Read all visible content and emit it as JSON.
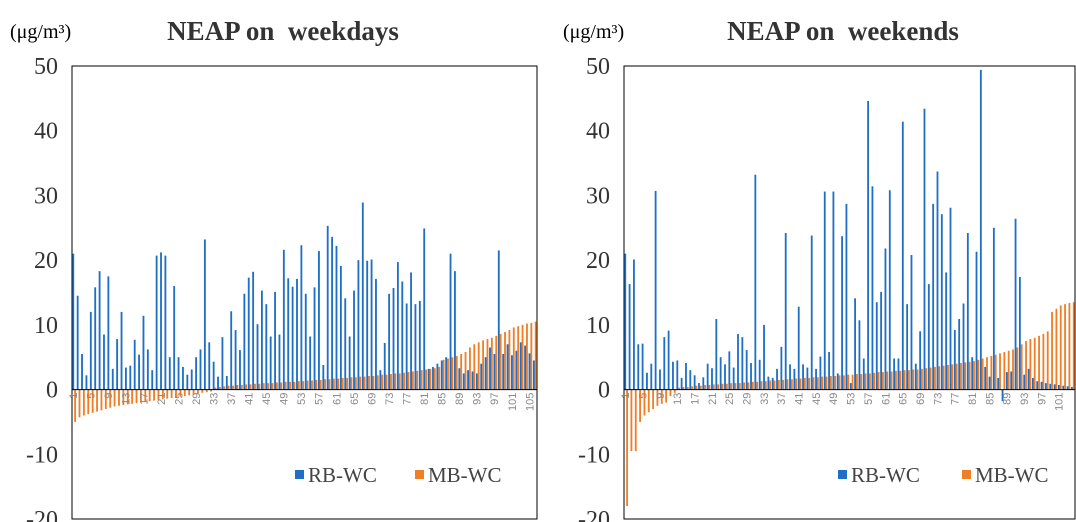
{
  "colors": {
    "rb": "#1f6fc6",
    "mb": "#f07e26",
    "axis": "#000000",
    "tick_x": "#8a8a8a"
  },
  "chart_data": [
    {
      "type": "bar",
      "title": "NEAP on  weekdays",
      "unit_label": "(μg/m³)",
      "ylim": [
        -20,
        50
      ],
      "yticks": [
        "50",
        "40",
        "30",
        "20",
        "10",
        "0",
        "-10",
        "-20"
      ],
      "grid": false,
      "legend_placement": "bottom-right",
      "categories": [
        1,
        2,
        3,
        4,
        5,
        6,
        7,
        8,
        9,
        10,
        11,
        12,
        13,
        14,
        15,
        16,
        17,
        18,
        19,
        20,
        21,
        22,
        23,
        24,
        25,
        26,
        27,
        28,
        29,
        30,
        31,
        32,
        33,
        34,
        35,
        36,
        37,
        38,
        39,
        40,
        41,
        42,
        43,
        44,
        45,
        46,
        47,
        48,
        49,
        50,
        51,
        52,
        53,
        54,
        55,
        56,
        57,
        58,
        59,
        60,
        61,
        62,
        63,
        64,
        65,
        66,
        67,
        68,
        69,
        70,
        71,
        72,
        73,
        74,
        75,
        76,
        77,
        78,
        79,
        80,
        81,
        82,
        83,
        84,
        85,
        86,
        87,
        88,
        89,
        90,
        91,
        92,
        93,
        94,
        95,
        96,
        97,
        98,
        99,
        100,
        101,
        102,
        103,
        104,
        105,
        106
      ],
      "xtick_labels": [
        "1",
        "5",
        "9",
        "13",
        "17",
        "21",
        "25",
        "29",
        "33",
        "37",
        "41",
        "45",
        "49",
        "53",
        "57",
        "61",
        "65",
        "69",
        "73",
        "77",
        "81",
        "85",
        "89",
        "93",
        "97",
        "101",
        "105"
      ],
      "series": [
        {
          "name": "RB-WC",
          "values": [
            21.0,
            14.5,
            5.5,
            2.2,
            12.0,
            15.8,
            18.3,
            8.5,
            17.5,
            3.2,
            7.8,
            12.0,
            3.4,
            3.7,
            7.7,
            5.4,
            11.4,
            6.2,
            3.0,
            20.7,
            21.2,
            20.7,
            5.0,
            16.0,
            5.0,
            3.5,
            2.3,
            3.1,
            5.0,
            6.2,
            23.2,
            7.3,
            4.3,
            2.0,
            8.1,
            2.1,
            12.1,
            9.2,
            6.1,
            14.8,
            17.3,
            18.2,
            10.1,
            15.3,
            13.2,
            8.2,
            15.1,
            8.5,
            21.6,
            17.2,
            15.9,
            17.1,
            22.3,
            14.8,
            8.2,
            15.8,
            21.4,
            3.8,
            25.3,
            23.6,
            22.2,
            19.1,
            14.1,
            8.2,
            15.3,
            20.0,
            28.9,
            19.9,
            20.1,
            17.1,
            3.0,
            7.2,
            14.8,
            15.7,
            19.7,
            16.7,
            13.3,
            18.1,
            13.2,
            13.7,
            24.9,
            3.2,
            3.5,
            4.0,
            4.5,
            5.0,
            21.0,
            18.3,
            3.3,
            2.5,
            3.0,
            2.8,
            2.5,
            4.0,
            5.0,
            6.5,
            5.5,
            21.5,
            5.5,
            7.0,
            5.3,
            6.0,
            7.3,
            6.8,
            5.6,
            4.5
          ]
        },
        {
          "name": "MB-WC",
          "values": [
            -5.0,
            -4.3,
            -4.0,
            -3.8,
            -3.6,
            -3.4,
            -3.2,
            -3.0,
            -2.8,
            -2.6,
            -2.5,
            -2.4,
            -2.3,
            -2.2,
            -2.1,
            -2.0,
            -1.9,
            -1.8,
            -1.7,
            -1.6,
            -1.5,
            -1.4,
            -1.3,
            -1.2,
            -1.1,
            -1.0,
            -0.9,
            -0.8,
            -0.6,
            -0.5,
            -0.4,
            -0.3,
            0.3,
            0.4,
            0.5,
            0.6,
            0.6,
            0.7,
            0.7,
            0.8,
            0.8,
            0.9,
            0.9,
            1.0,
            1.0,
            1.0,
            1.1,
            1.1,
            1.2,
            1.2,
            1.2,
            1.3,
            1.3,
            1.4,
            1.4,
            1.5,
            1.5,
            1.6,
            1.6,
            1.7,
            1.7,
            1.8,
            1.8,
            1.9,
            1.9,
            2.0,
            2.0,
            2.1,
            2.1,
            2.2,
            2.3,
            2.3,
            2.4,
            2.5,
            2.5,
            2.6,
            2.7,
            2.8,
            2.9,
            3.0,
            3.1,
            3.2,
            3.3,
            3.5,
            4.6,
            4.8,
            5.0,
            5.2,
            5.5,
            5.8,
            6.5,
            7.0,
            7.3,
            7.6,
            7.8,
            8.0,
            8.3,
            8.6,
            8.9,
            9.2,
            9.6,
            9.8,
            10.0,
            10.2,
            10.3,
            10.5
          ]
        }
      ]
    },
    {
      "type": "bar",
      "title": "NEAP on  weekends",
      "unit_label": "(μg/m³)",
      "ylim": [
        -20,
        50
      ],
      "yticks": [
        "50",
        "40",
        "30",
        "20",
        "10",
        "0",
        "-10",
        "-20"
      ],
      "grid": false,
      "legend_placement": "bottom-right",
      "categories": [
        1,
        2,
        3,
        4,
        5,
        6,
        7,
        8,
        9,
        10,
        11,
        12,
        13,
        14,
        15,
        16,
        17,
        18,
        19,
        20,
        21,
        22,
        23,
        24,
        25,
        26,
        27,
        28,
        29,
        30,
        31,
        32,
        33,
        34,
        35,
        36,
        37,
        38,
        39,
        40,
        41,
        42,
        43,
        44,
        45,
        46,
        47,
        48,
        49,
        50,
        51,
        52,
        53,
        54,
        55,
        56,
        57,
        58,
        59,
        60,
        61,
        62,
        63,
        64,
        65,
        66,
        67,
        68,
        69,
        70,
        71,
        72,
        73,
        74,
        75,
        76,
        77,
        78,
        79,
        80,
        81,
        82,
        83,
        84,
        85,
        86,
        87,
        88,
        89,
        90,
        91,
        92,
        93,
        94,
        95,
        96,
        97,
        98,
        99,
        100,
        101,
        102,
        103,
        104
      ],
      "xtick_labels": [
        "1",
        "5",
        "9",
        "13",
        "17",
        "21",
        "25",
        "29",
        "33",
        "37",
        "41",
        "45",
        "49",
        "53",
        "57",
        "61",
        "65",
        "69",
        "73",
        "77",
        "81",
        "85",
        "89",
        "93",
        "97",
        "101"
      ],
      "series": [
        {
          "name": "RB-WC",
          "values": [
            21.0,
            16.3,
            20.1,
            7.0,
            7.1,
            2.6,
            4.0,
            30.7,
            3.1,
            8.1,
            9.1,
            4.3,
            4.5,
            1.8,
            4.1,
            3.0,
            2.2,
            1.0,
            1.9,
            4.0,
            3.3,
            10.9,
            5.0,
            3.9,
            5.9,
            3.4,
            8.6,
            8.1,
            6.1,
            4.1,
            33.2,
            4.6,
            10.0,
            2.0,
            1.8,
            3.2,
            6.6,
            24.2,
            3.9,
            3.2,
            12.8,
            3.9,
            3.4,
            23.8,
            3.2,
            5.1,
            30.6,
            5.8,
            30.6,
            2.5,
            23.7,
            28.7,
            1.0,
            14.1,
            10.7,
            4.8,
            44.6,
            31.4,
            13.5,
            15.1,
            21.8,
            30.8,
            4.8,
            4.8,
            41.4,
            13.2,
            20.8,
            4.0,
            9.0,
            43.4,
            16.3,
            28.7,
            33.7,
            27.1,
            18.1,
            28.1,
            9.2,
            10.9,
            13.3,
            24.2,
            5.0,
            21.3,
            49.4,
            3.5,
            2.0,
            25.0,
            1.8,
            -1.8,
            2.7,
            2.8,
            26.4,
            17.4,
            2.3,
            3.2,
            1.8,
            1.3,
            1.2,
            1.0,
            0.9,
            0.8,
            0.7,
            0.6,
            0.5,
            0.4
          ]
        },
        {
          "name": "MB-WC",
          "values": [
            -18.0,
            -9.5,
            -9.5,
            -5.0,
            -4.0,
            -3.5,
            -3.0,
            -2.5,
            -2.2,
            -2.0,
            -1.0,
            -0.5,
            0.3,
            0.4,
            0.4,
            0.5,
            0.6,
            0.6,
            0.7,
            0.7,
            0.8,
            0.8,
            0.9,
            0.9,
            1.0,
            1.0,
            1.0,
            1.1,
            1.1,
            1.2,
            1.2,
            1.3,
            1.3,
            1.4,
            1.4,
            1.5,
            1.5,
            1.6,
            1.6,
            1.7,
            1.7,
            1.8,
            1.8,
            1.9,
            1.9,
            2.0,
            2.0,
            2.1,
            2.1,
            2.2,
            2.2,
            2.3,
            2.3,
            2.4,
            2.4,
            2.5,
            2.5,
            2.6,
            2.7,
            2.7,
            2.8,
            2.8,
            2.9,
            2.9,
            3.0,
            3.0,
            3.1,
            3.1,
            3.2,
            3.3,
            3.4,
            3.5,
            3.6,
            3.7,
            3.8,
            3.9,
            4.0,
            4.1,
            4.2,
            4.3,
            4.4,
            4.6,
            4.8,
            5.0,
            5.2,
            5.4,
            5.6,
            5.8,
            6.0,
            6.2,
            6.5,
            7.0,
            7.5,
            7.8,
            8.0,
            8.3,
            8.6,
            9.0,
            12.0,
            12.5,
            13.0,
            13.2,
            13.4,
            13.5
          ]
        }
      ]
    }
  ]
}
